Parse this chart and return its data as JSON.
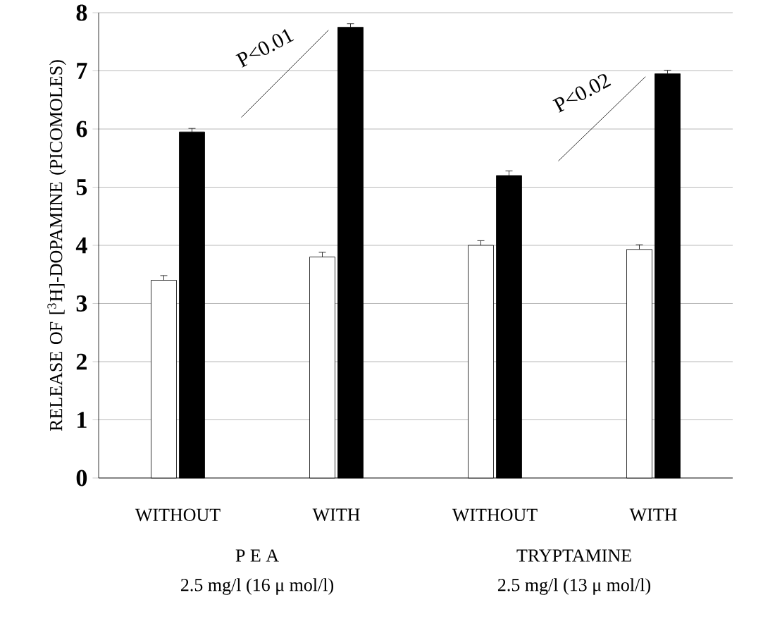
{
  "chart_data": {
    "type": "bar",
    "ylabel": "RELEASE OF [$^{3}$H]-DOPAMINE (PICOMOLES)",
    "categories": [
      "WITHOUT",
      "WITH",
      "WITHOUT",
      "WITH"
    ],
    "series": [
      {
        "color": "#ffffff",
        "values": [
          3.4,
          3.8,
          4.0,
          3.93
        ],
        "errors": [
          0.08,
          0.08,
          0.08,
          0.08
        ]
      },
      {
        "color": "#000000",
        "values": [
          5.95,
          7.75,
          5.2,
          6.95
        ],
        "errors": [
          0.06,
          0.06,
          0.08,
          0.06
        ]
      }
    ],
    "ylim": [
      0,
      8
    ],
    "yticks": [
      0,
      1,
      2,
      3,
      4,
      5,
      6,
      7,
      8
    ],
    "grid": "y",
    "annotations": [
      "P<0.01",
      "P<0.02",
      "P E A",
      "2.5 mg/l (16 μ mol/l)",
      "TRYPTAMINE",
      "2.5 mg/l (13 μ mol/l)"
    ]
  }
}
